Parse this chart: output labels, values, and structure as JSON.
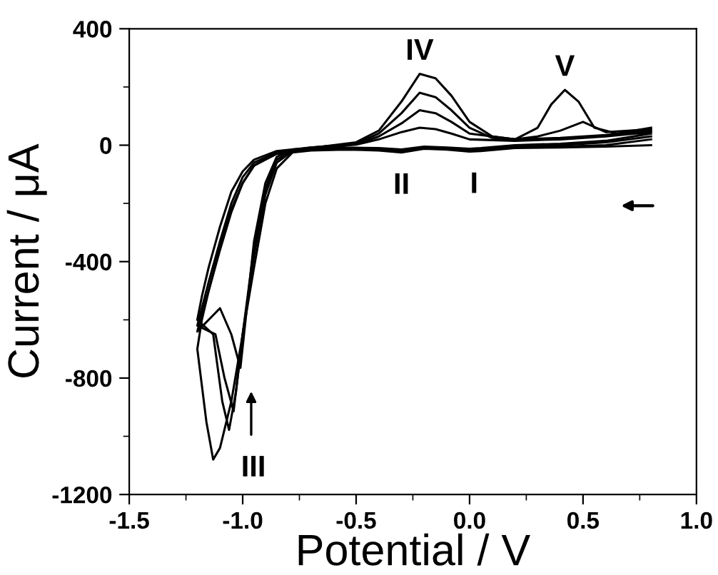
{
  "chart_data": {
    "type": "line",
    "xlabel": "Potential / V",
    "ylabel": "Current / μA",
    "xlim": [
      -1.5,
      1.0
    ],
    "xticks": [
      {
        "value": -1.5,
        "label": "-1.5"
      },
      {
        "value": -1.0,
        "label": "-1.0"
      },
      {
        "value": -0.5,
        "label": "-0.5"
      },
      {
        "value": 0.0,
        "label": "0.0"
      },
      {
        "value": 0.5,
        "label": "0.5"
      },
      {
        "value": 1.0,
        "label": "1.0"
      }
    ],
    "ylim": [
      -1200,
      400
    ],
    "yticks": [
      {
        "value": -1200,
        "label": "-1200"
      },
      {
        "value": -800,
        "label": "-800"
      },
      {
        "value": -400,
        "label": "-400"
      },
      0,
      400
    ],
    "grid": false,
    "legend": false,
    "marker": "none",
    "line_style": "solid",
    "series": [
      {
        "color": "#000000",
        "x": [
          0.8,
          0.6,
          0.4,
          0.2,
          0.05,
          0.0,
          -0.1,
          -0.2,
          -0.3,
          -0.4,
          -0.55,
          -0.7,
          -0.78,
          -0.85,
          -0.9,
          -0.95,
          -1.0,
          -1.05,
          -1.1,
          -1.13,
          -1.16,
          -1.2,
          -1.18,
          -1.15,
          -1.1,
          -1.05,
          -1.0,
          -0.95,
          -0.85,
          -0.7,
          -0.5,
          -0.4,
          -0.3,
          -0.22,
          -0.15,
          -0.08,
          0.0,
          0.1,
          0.2,
          0.3,
          0.36,
          0.42,
          0.48,
          0.55,
          0.65,
          0.8
        ],
        "values": [
          0,
          -5,
          -8,
          -10,
          -20,
          -22,
          -15,
          -12,
          -25,
          -18,
          -15,
          -18,
          -25,
          -80,
          -200,
          -420,
          -650,
          -880,
          -1040,
          -1080,
          -950,
          -700,
          -600,
          -500,
          -350,
          -220,
          -130,
          -70,
          -25,
          -10,
          10,
          50,
          150,
          245,
          230,
          170,
          80,
          30,
          20,
          60,
          140,
          190,
          150,
          60,
          40,
          60
        ]
      },
      {
        "color": "#000000",
        "x": [
          0.8,
          0.6,
          0.4,
          0.2,
          0.05,
          0.0,
          -0.1,
          -0.2,
          -0.3,
          -0.4,
          -0.55,
          -0.7,
          -0.78,
          -0.85,
          -0.9,
          -0.95,
          -1.0,
          -1.03,
          -1.06,
          -1.09,
          -1.13,
          -1.2,
          -1.18,
          -1.15,
          -1.1,
          -1.05,
          -1.0,
          -0.95,
          -0.85,
          -0.7,
          -0.5,
          -0.4,
          -0.3,
          -0.22,
          -0.15,
          -0.08,
          0.0,
          0.1,
          0.2,
          0.3,
          0.4,
          0.5,
          0.6,
          0.8
        ],
        "values": [
          20,
          0,
          -5,
          -8,
          -18,
          -20,
          -12,
          -10,
          -22,
          -15,
          -12,
          -15,
          -20,
          -60,
          -170,
          -380,
          -650,
          -850,
          -978,
          -880,
          -650,
          -600,
          -520,
          -420,
          -280,
          -160,
          -90,
          -50,
          -20,
          -8,
          5,
          40,
          110,
          180,
          165,
          120,
          60,
          25,
          20,
          30,
          50,
          80,
          45,
          55
        ]
      },
      {
        "color": "#000000",
        "x": [
          0.8,
          0.6,
          0.4,
          0.2,
          0.05,
          0.0,
          -0.1,
          -0.2,
          -0.3,
          -0.4,
          -0.55,
          -0.7,
          -0.78,
          -0.85,
          -0.9,
          -0.95,
          -1.0,
          -1.04,
          -1.08,
          -1.12,
          -1.2,
          -1.18,
          -1.15,
          -1.1,
          -1.05,
          -1.0,
          -0.95,
          -0.85,
          -0.7,
          -0.5,
          -0.4,
          -0.3,
          -0.22,
          -0.15,
          -0.08,
          0.0,
          0.2,
          0.4,
          0.6,
          0.8
        ],
        "values": [
          30,
          10,
          0,
          -5,
          -15,
          -18,
          -10,
          -8,
          -20,
          -12,
          -10,
          -12,
          -18,
          -50,
          -150,
          -350,
          -650,
          -914,
          -800,
          -650,
          -620,
          -560,
          -470,
          -330,
          -200,
          -110,
          -60,
          -25,
          -8,
          3,
          30,
          75,
          120,
          110,
          80,
          40,
          20,
          25,
          35,
          50
        ]
      },
      {
        "color": "#000000",
        "x": [
          0.8,
          0.6,
          0.4,
          0.2,
          0.05,
          0.0,
          -0.1,
          -0.2,
          -0.3,
          -0.4,
          -0.55,
          -0.7,
          -0.78,
          -0.85,
          -0.9,
          -0.95,
          -1.01,
          -1.05,
          -1.1,
          -1.2,
          -1.18,
          -1.15,
          -1.1,
          -1.05,
          -1.0,
          -0.95,
          -0.85,
          -0.7,
          -0.5,
          -0.4,
          -0.3,
          -0.22,
          -0.15,
          -0.08,
          0.0,
          0.2,
          0.4,
          0.6,
          0.8
        ],
        "values": [
          40,
          15,
          5,
          0,
          -10,
          -12,
          -8,
          -5,
          -15,
          -10,
          -8,
          -10,
          -15,
          -40,
          -130,
          -330,
          -765,
          -650,
          -560,
          -640,
          -580,
          -500,
          -360,
          -230,
          -130,
          -70,
          -30,
          -10,
          2,
          20,
          45,
          60,
          55,
          40,
          20,
          15,
          20,
          30,
          45
        ]
      }
    ],
    "annotations": [
      {
        "text": "IV",
        "x": -0.22,
        "y": 245
      },
      {
        "text": "V",
        "x": 0.42,
        "y": 190
      },
      {
        "text": "II",
        "x": -0.3,
        "y": -25
      },
      {
        "text": "I",
        "x": 0.02,
        "y": -22
      },
      {
        "text": "III",
        "x": -1.04,
        "y": -914
      }
    ]
  }
}
